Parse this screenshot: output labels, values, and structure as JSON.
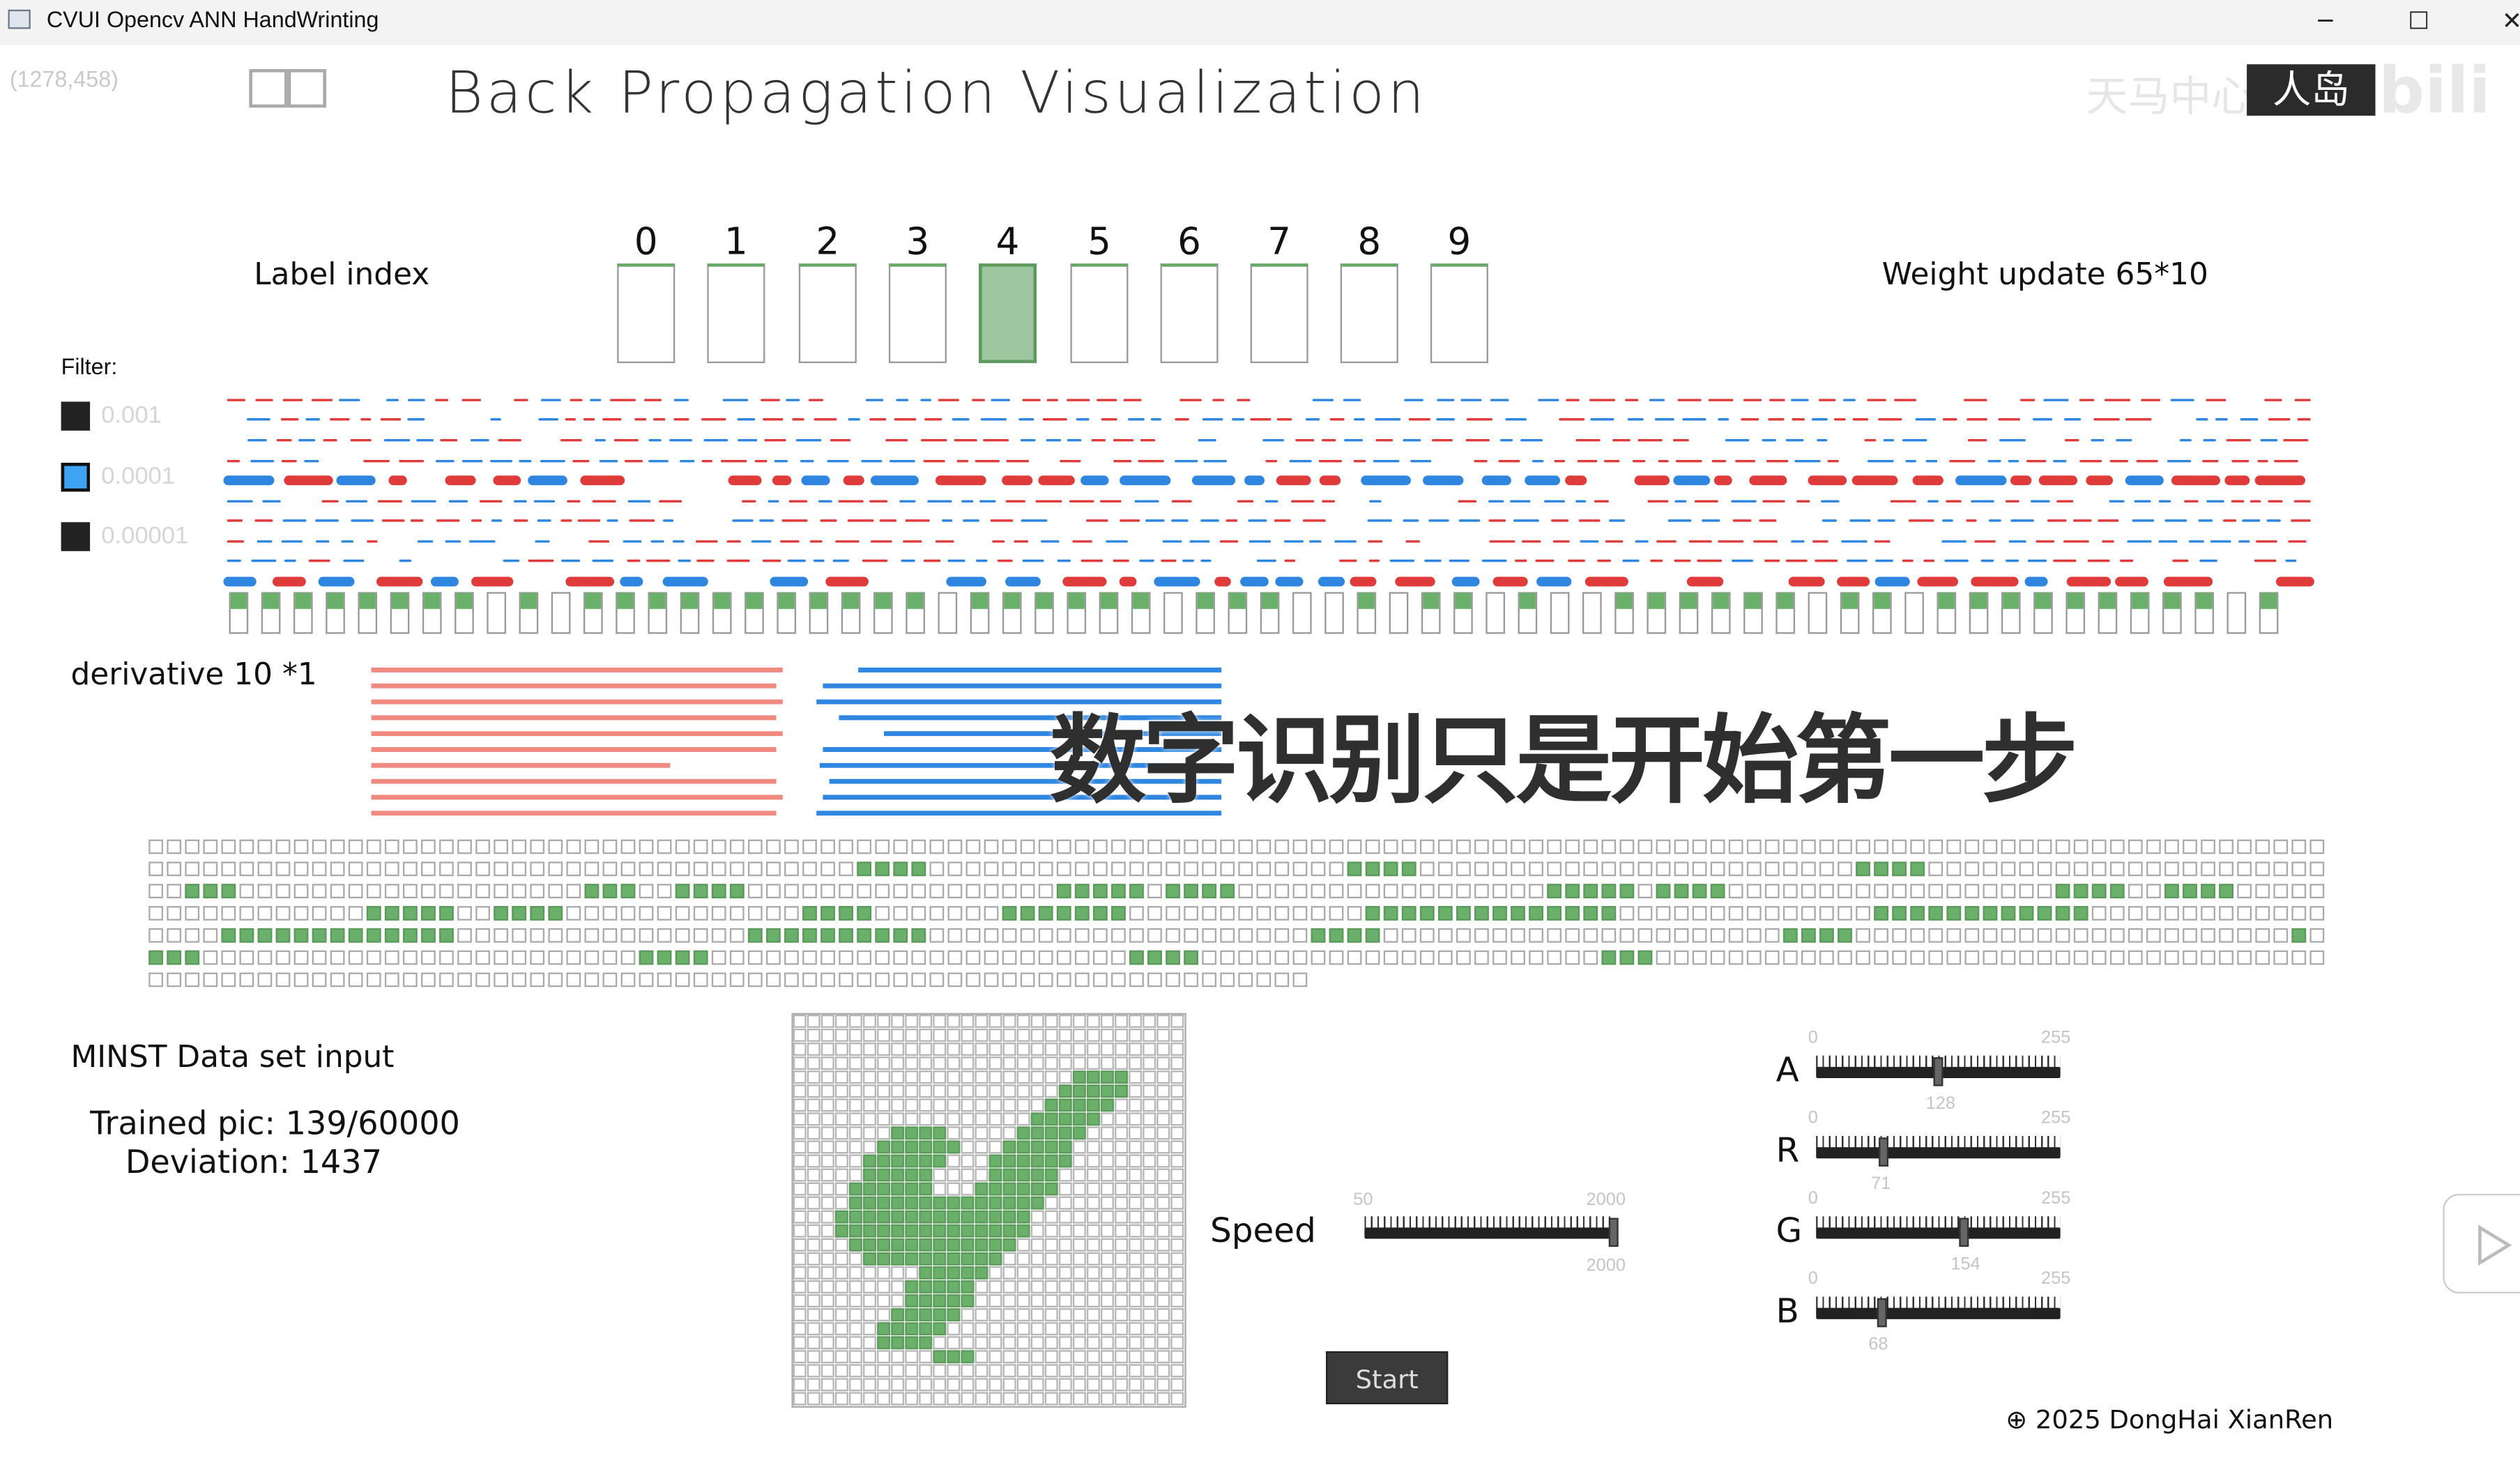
{
  "window": {
    "title": "CVUI Opencv ANN HandWrinting",
    "minimize": "─",
    "maximize": "☐",
    "close": "✕"
  },
  "coords": "(1278,458)",
  "title": "Back Propagation Visualization",
  "watermark": {
    "text1": "天马中心",
    "text2": "人岛",
    "bili": "bili"
  },
  "label_index": {
    "label": "Label index",
    "digits": [
      "0",
      "1",
      "2",
      "3",
      "4",
      "5",
      "6",
      "7",
      "8",
      "9"
    ],
    "selected": 4
  },
  "weight_update": "Weight update 65*10",
  "filter": {
    "title": "Filter:",
    "values": [
      "0.001",
      "0.0001",
      "0.00001"
    ],
    "selected": 1
  },
  "derivative_label": "derivative 10 *1",
  "overlay_text": "数字识别只是开始第一步",
  "mnist": {
    "title": "MINST Data set input",
    "trained": "Trained pic: 139/60000",
    "deviation": "Deviation: 1437"
  },
  "speed": {
    "label": "Speed",
    "min": "50",
    "max": "2000",
    "value": "2000",
    "fraction": 1.0
  },
  "color_sliders": [
    {
      "name": "A",
      "min": "0",
      "max": "255",
      "value": "128",
      "fraction": 0.502
    },
    {
      "name": "R",
      "min": "0",
      "max": "255",
      "value": "71",
      "fraction": 0.278
    },
    {
      "name": "G",
      "min": "0",
      "max": "255",
      "value": "154",
      "fraction": 0.604
    },
    {
      "name": "B",
      "min": "0",
      "max": "255",
      "value": "68",
      "fraction": 0.267
    }
  ],
  "start_label": "Start",
  "copyright": "2025 DongHai XianRen",
  "colors": {
    "red": "#e03b3b",
    "blue": "#2f86e0",
    "green": "#6ab06a",
    "salmon": "#f08a80"
  }
}
